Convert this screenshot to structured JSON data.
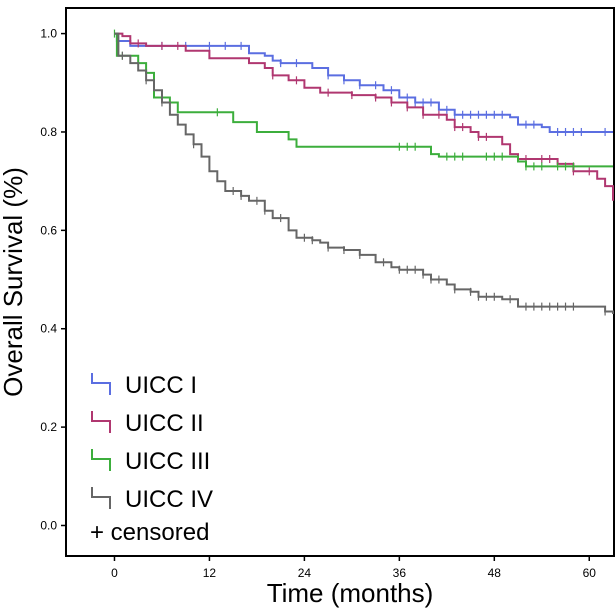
{
  "chart_data": {
    "type": "line",
    "title": "",
    "xlabel": "Time (months)",
    "ylabel": "Overall Survival (%)",
    "xlim": [
      -6,
      63
    ],
    "ylim": [
      -0.06,
      1.05
    ],
    "x_ticks": [
      0,
      12,
      24,
      36,
      48,
      60
    ],
    "x_tick_labels": [
      "0",
      "12",
      "24",
      "36",
      "48",
      "60"
    ],
    "y_ticks": [
      0.0,
      0.2,
      0.4,
      0.6,
      0.8,
      1.0
    ],
    "y_tick_labels": [
      "0.0",
      "0.2",
      "0.4",
      "0.6",
      "0.8",
      "1.0"
    ],
    "grid": false,
    "legend_position": "bottom-left",
    "censored_label": "+ censored",
    "series": [
      {
        "name": "UICC I",
        "color": "#5b6ee1",
        "steps": [
          [
            0,
            1.0
          ],
          [
            0.3,
            0.985
          ],
          [
            2,
            0.975
          ],
          [
            14,
            0.975
          ],
          [
            17,
            0.96
          ],
          [
            19,
            0.955
          ],
          [
            20,
            0.945
          ],
          [
            21,
            0.94
          ],
          [
            25,
            0.93
          ],
          [
            27,
            0.915
          ],
          [
            29,
            0.905
          ],
          [
            31,
            0.895
          ],
          [
            34,
            0.885
          ],
          [
            36,
            0.87
          ],
          [
            38,
            0.86
          ],
          [
            41,
            0.845
          ],
          [
            43,
            0.835
          ],
          [
            50,
            0.83
          ],
          [
            51,
            0.815
          ],
          [
            54,
            0.81
          ],
          [
            55,
            0.8
          ],
          [
            63,
            0.8
          ]
        ],
        "censored": [
          6,
          9,
          12,
          14,
          16,
          21,
          23,
          27,
          29,
          31,
          33,
          35,
          37,
          38,
          39,
          40,
          42,
          43,
          44,
          45,
          46,
          47,
          48,
          49,
          52,
          53,
          56,
          57,
          58,
          59,
          62
        ]
      },
      {
        "name": "UICC II",
        "color": "#b03770",
        "steps": [
          [
            0,
            1.0
          ],
          [
            1,
            0.995
          ],
          [
            2,
            0.98
          ],
          [
            4,
            0.975
          ],
          [
            9,
            0.965
          ],
          [
            12,
            0.95
          ],
          [
            17,
            0.94
          ],
          [
            19,
            0.93
          ],
          [
            20,
            0.915
          ],
          [
            22,
            0.905
          ],
          [
            24,
            0.89
          ],
          [
            26,
            0.88
          ],
          [
            30,
            0.875
          ],
          [
            33,
            0.87
          ],
          [
            35,
            0.86
          ],
          [
            37,
            0.85
          ],
          [
            39,
            0.835
          ],
          [
            42,
            0.825
          ],
          [
            43,
            0.81
          ],
          [
            45,
            0.8
          ],
          [
            46,
            0.79
          ],
          [
            49,
            0.775
          ],
          [
            50,
            0.755
          ],
          [
            51,
            0.745
          ],
          [
            56,
            0.735
          ],
          [
            58,
            0.72
          ],
          [
            61,
            0.705
          ],
          [
            62,
            0.69
          ],
          [
            63,
            0.66
          ]
        ],
        "censored": [
          3,
          6,
          8,
          20,
          23,
          27,
          30,
          33,
          35,
          37,
          39,
          41,
          43,
          44,
          46,
          47,
          52,
          54,
          55,
          58,
          60
        ]
      },
      {
        "name": "UICC III",
        "color": "#3cae3c",
        "steps": [
          [
            0,
            1.0
          ],
          [
            0.3,
            0.955
          ],
          [
            3,
            0.94
          ],
          [
            4,
            0.92
          ],
          [
            5,
            0.87
          ],
          [
            7,
            0.86
          ],
          [
            8,
            0.84
          ],
          [
            15,
            0.82
          ],
          [
            18,
            0.8
          ],
          [
            22,
            0.785
          ],
          [
            23,
            0.77
          ],
          [
            40,
            0.755
          ],
          [
            41,
            0.75
          ],
          [
            51,
            0.74
          ],
          [
            52,
            0.73
          ],
          [
            63,
            0.73
          ]
        ],
        "censored": [
          0,
          1,
          13,
          36,
          37,
          38,
          42,
          43,
          44,
          47,
          48,
          49,
          52,
          53,
          54,
          56,
          57,
          58
        ]
      },
      {
        "name": "UICC IV",
        "color": "#666666",
        "steps": [
          [
            0,
            1.0
          ],
          [
            0.5,
            0.955
          ],
          [
            2,
            0.94
          ],
          [
            3,
            0.925
          ],
          [
            4,
            0.905
          ],
          [
            5,
            0.885
          ],
          [
            6,
            0.86
          ],
          [
            7,
            0.835
          ],
          [
            8,
            0.815
          ],
          [
            9,
            0.795
          ],
          [
            10,
            0.775
          ],
          [
            11,
            0.75
          ],
          [
            12,
            0.72
          ],
          [
            13,
            0.7
          ],
          [
            14,
            0.68
          ],
          [
            16,
            0.67
          ],
          [
            17,
            0.66
          ],
          [
            19,
            0.64
          ],
          [
            20,
            0.625
          ],
          [
            22,
            0.6
          ],
          [
            23,
            0.585
          ],
          [
            25,
            0.58
          ],
          [
            26,
            0.575
          ],
          [
            27,
            0.565
          ],
          [
            29,
            0.56
          ],
          [
            31,
            0.55
          ],
          [
            33,
            0.535
          ],
          [
            35,
            0.525
          ],
          [
            36,
            0.52
          ],
          [
            39,
            0.51
          ],
          [
            40,
            0.5
          ],
          [
            42,
            0.49
          ],
          [
            43,
            0.48
          ],
          [
            45,
            0.475
          ],
          [
            46,
            0.465
          ],
          [
            49,
            0.46
          ],
          [
            51,
            0.445
          ],
          [
            62,
            0.435
          ],
          [
            63,
            0.43
          ]
        ],
        "censored": [
          1,
          4,
          6,
          10,
          15,
          16,
          18,
          19,
          21,
          24,
          25,
          27,
          29,
          31,
          34,
          36,
          37,
          38,
          39,
          40,
          41,
          43,
          45,
          46,
          47,
          48,
          50,
          52,
          53,
          54,
          55,
          56,
          57,
          58,
          62
        ]
      }
    ]
  }
}
